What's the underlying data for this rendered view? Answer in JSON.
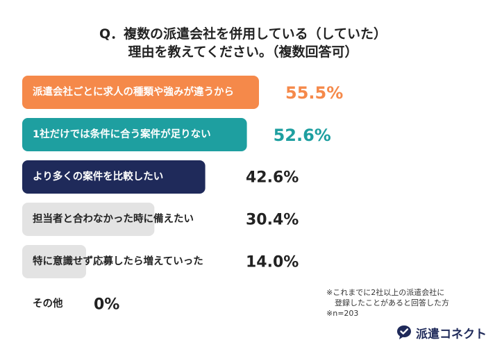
{
  "title": {
    "line1": "Q．複数の派遣会社を併用している（していた）",
    "line2": "理由を教えてください。（複数回答可）"
  },
  "chart_data": {
    "type": "bar",
    "orientation": "horizontal",
    "categories": [
      "派遣会社ごとに求人の種類や強みが違うから",
      "1社だけでは条件に合う案件が足りない",
      "より多くの案件を比較したい",
      "担当者と合わなかった時に備えたい",
      "特に意識せず応募したら増えていった",
      "その他"
    ],
    "values": [
      55.5,
      52.6,
      42.6,
      30.4,
      14.0,
      0
    ],
    "value_labels": [
      "55.5%",
      "52.6%",
      "42.6%",
      "30.4%",
      "14.0%",
      "0%"
    ],
    "bar_colors": [
      "#f5894a",
      "#1e9fa0",
      "#1f2a5a",
      "#e3e3e3",
      "#e3e3e3",
      "#e3e3e3"
    ],
    "label_colors": [
      "#ffffff",
      "#ffffff",
      "#ffffff",
      "#222222",
      "#222222",
      "#222222"
    ],
    "value_colors": [
      "#f5894a",
      "#1e9fa0",
      "#222222",
      "#222222",
      "#222222",
      "#222222"
    ],
    "xlim": [
      0,
      55.5
    ],
    "grid": false,
    "legend": false
  },
  "footnote": {
    "line1": "※これまでに2社以上の派遣会社に",
    "line2": "登録したことがあると回答した方",
    "line3": "※n=203"
  },
  "logo": {
    "text": "派遣コネクト",
    "icon": "speech-bubble-check-icon",
    "color": "#1f2a5a"
  }
}
